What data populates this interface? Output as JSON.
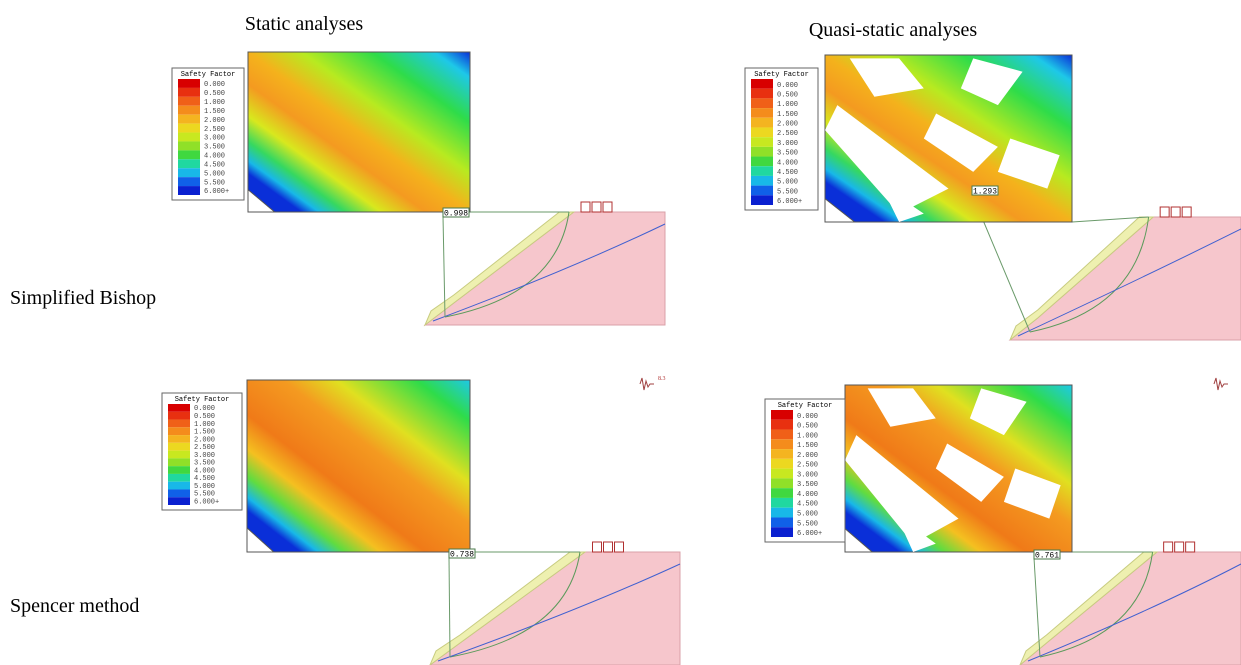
{
  "header": {
    "columns": [
      "Static analyses",
      "Quasi-static analyses"
    ]
  },
  "rows": [
    "Simplified Bishop",
    "Spencer method"
  ],
  "legend": {
    "title": "Safety Factor",
    "labels": [
      "0.000",
      "0.500",
      "1.000",
      "1.500",
      "2.000",
      "2.500",
      "3.000",
      "3.500",
      "4.000",
      "4.500",
      "5.000",
      "5.500",
      "6.000+"
    ]
  },
  "panels": [
    {
      "min_fs": "0.998"
    },
    {
      "min_fs": "1.293"
    },
    {
      "min_fs": "0.738"
    },
    {
      "min_fs": "0.761"
    }
  ],
  "seismic_label": "8.3"
}
